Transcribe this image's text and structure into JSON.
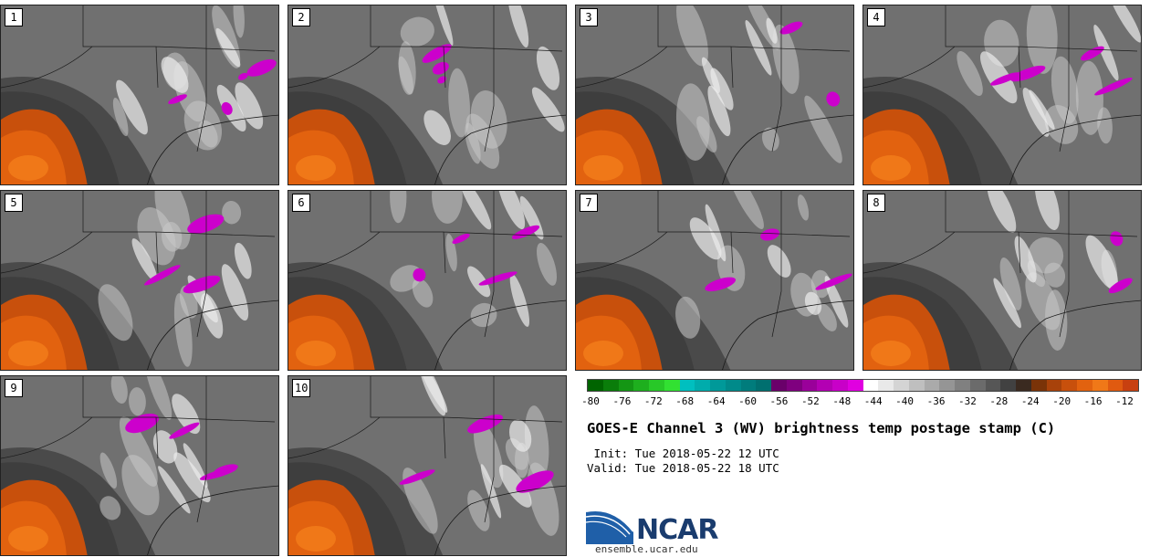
{
  "panels": [
    "1",
    "2",
    "3",
    "4",
    "5",
    "6",
    "7",
    "8",
    "9",
    "10"
  ],
  "colorbar": {
    "colors": [
      "#006400",
      "#0a7d0a",
      "#149614",
      "#1eaf1e",
      "#28c828",
      "#32e132",
      "#00bfbf",
      "#00acac",
      "#009999",
      "#008a8a",
      "#007c7c",
      "#006f6f",
      "#6a006a",
      "#7f007f",
      "#9a009a",
      "#b300b3",
      "#c800c8",
      "#e000e0",
      "#ffffff",
      "#e9e9e9",
      "#d4d4d4",
      "#bfbfbf",
      "#aaaaaa",
      "#959595",
      "#808080",
      "#6b6b6b",
      "#565656",
      "#414141",
      "#3a2a20",
      "#7a3308",
      "#a8420a",
      "#c8500c",
      "#e2620f",
      "#f07818",
      "#e05a10",
      "#c84010"
    ],
    "ticks": [
      "-80",
      "-76",
      "-72",
      "-68",
      "-64",
      "-60",
      "-56",
      "-52",
      "-48",
      "-44",
      "-40",
      "-36",
      "-32",
      "-28",
      "-24",
      "-20",
      "-16",
      "-12"
    ]
  },
  "title": "GOES-E Channel 3 (WV) brightness temp postage stamp (C)",
  "init": " Init: Tue 2018-05-22 12 UTC",
  "valid": "Valid: Tue 2018-05-22 18 UTC",
  "logo": {
    "text": "NCAR",
    "site": "ensemble.ucar.edu",
    "blue": "#1f5fa8"
  }
}
